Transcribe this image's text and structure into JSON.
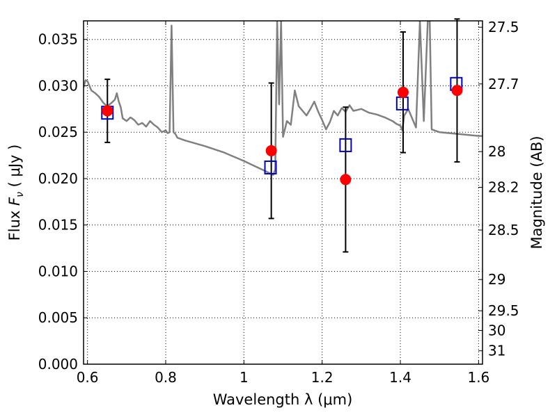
{
  "chart_data": {
    "type": "scatter",
    "xlabel": "Wavelength  λ (μm)",
    "ylabel_prefix": "Flux  ",
    "ylabel_symbol": "F",
    "ylabel_sub": "ν",
    "ylabel_suffix": "  ( μJy )",
    "y2label": "Magnitude (AB)",
    "xlim": [
      0.59,
      1.61
    ],
    "ylim": [
      0.0,
      0.037
    ],
    "grid": true,
    "x_ticks": [
      0.6,
      0.8,
      1.0,
      1.2,
      1.4,
      1.6
    ],
    "x_tick_labels": [
      "0.6",
      "0.8",
      "1",
      "1.2",
      "1.4",
      "1.6"
    ],
    "y_ticks": [
      0.0,
      0.005,
      0.01,
      0.015,
      0.02,
      0.025,
      0.03,
      0.035
    ],
    "y_tick_labels": [
      "0.000",
      "0.005",
      "0.010",
      "0.015",
      "0.020",
      "0.025",
      "0.030",
      "0.035"
    ],
    "mag_ticks": [
      27.5,
      27.7,
      28,
      28.2,
      28.5,
      29,
      29.5,
      30,
      31
    ],
    "mag_tick_labels": [
      "27.5",
      "27.7",
      "28",
      "28.2",
      "28.5",
      "29",
      "29.5",
      "30",
      "31"
    ],
    "series": [
      {
        "style": "line",
        "color": "#808080",
        "x": [
          0.59,
          0.595,
          0.6,
          0.61,
          0.62,
          0.63,
          0.64,
          0.65,
          0.66,
          0.67,
          0.675,
          0.68,
          0.685,
          0.69,
          0.7,
          0.71,
          0.72,
          0.73,
          0.74,
          0.75,
          0.76,
          0.77,
          0.78,
          0.79,
          0.8,
          0.805,
          0.81,
          0.815,
          0.82,
          0.825,
          0.83,
          0.85,
          0.9,
          0.95,
          1.0,
          1.03,
          1.06,
          1.075,
          1.08,
          1.085,
          1.09,
          1.095,
          1.1,
          1.11,
          1.12,
          1.13,
          1.14,
          1.15,
          1.16,
          1.17,
          1.18,
          1.19,
          1.2,
          1.205,
          1.21,
          1.22,
          1.23,
          1.24,
          1.25,
          1.26,
          1.27,
          1.28,
          1.3,
          1.32,
          1.34,
          1.36,
          1.38,
          1.39,
          1.4,
          1.405,
          1.41,
          1.42,
          1.44,
          1.45,
          1.46,
          1.47,
          1.475,
          1.48,
          1.5,
          1.55,
          1.6,
          1.61
        ],
        "y": [
          0.0298,
          0.0306,
          0.0305,
          0.0295,
          0.0292,
          0.0288,
          0.0282,
          0.0278,
          0.0281,
          0.0285,
          0.0292,
          0.0283,
          0.0277,
          0.0265,
          0.0262,
          0.0266,
          0.0263,
          0.0258,
          0.026,
          0.0256,
          0.0262,
          0.0258,
          0.0255,
          0.025,
          0.0252,
          0.0249,
          0.025,
          0.0365,
          0.025,
          0.0248,
          0.0244,
          0.0241,
          0.0235,
          0.0228,
          0.0219,
          0.0213,
          0.0207,
          0.0204,
          0.021,
          0.037,
          0.028,
          0.037,
          0.0245,
          0.0262,
          0.0258,
          0.0295,
          0.0278,
          0.0273,
          0.0268,
          0.0275,
          0.0283,
          0.0272,
          0.0263,
          0.0258,
          0.0253,
          0.0261,
          0.0273,
          0.0268,
          0.0276,
          0.0272,
          0.0279,
          0.0273,
          0.0275,
          0.0271,
          0.0269,
          0.0266,
          0.0262,
          0.0259,
          0.0257,
          0.0252,
          0.0268,
          0.0275,
          0.0255,
          0.037,
          0.0262,
          0.037,
          0.037,
          0.0253,
          0.025,
          0.0248,
          0.0246,
          0.0246
        ]
      },
      {
        "style": "square",
        "color": "#0000cc",
        "x": [
          0.651,
          1.068,
          1.26,
          1.405,
          1.543
        ],
        "y": [
          0.0271,
          0.0212,
          0.0236,
          0.0281,
          0.0302
        ]
      },
      {
        "style": "circle",
        "color": "#ff0000",
        "x": [
          0.651,
          1.07,
          1.26,
          1.407,
          1.545
        ],
        "y": [
          0.0273,
          0.023,
          0.0199,
          0.0293,
          0.0295
        ],
        "yerr_low": [
          0.0034,
          0.0073,
          0.0078,
          0.0065,
          0.0077
        ],
        "yerr_high": [
          0.0034,
          0.0073,
          0.0078,
          0.0065,
          0.0077
        ]
      }
    ]
  }
}
